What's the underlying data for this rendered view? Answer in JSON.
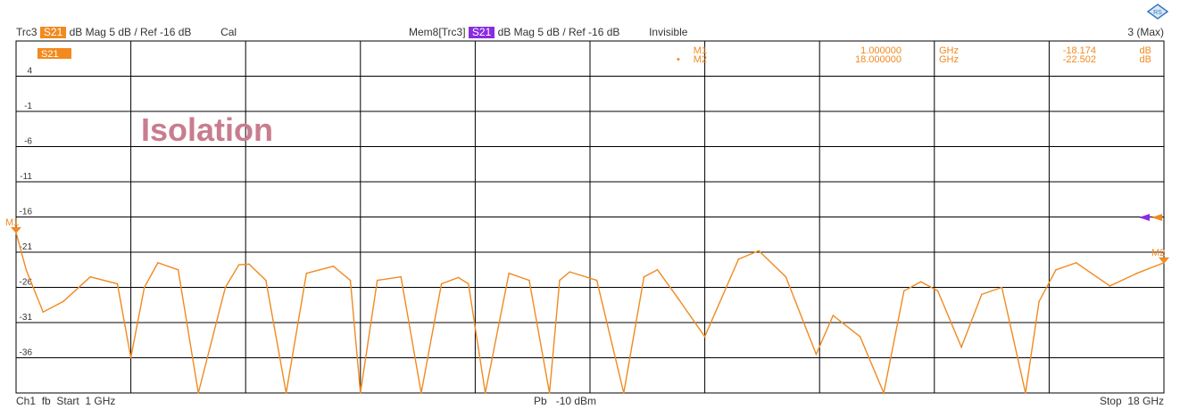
{
  "header": {
    "trace": "Trc3",
    "trace_param": "S21",
    "trace_format": "dB Mag",
    "trace_scale": "5 dB /",
    "trace_ref": "Ref -16 dB",
    "trace_cal": "Cal",
    "mem": "Mem8[Trc3]",
    "mem_param": "S21",
    "mem_format": "dB Mag",
    "mem_scale": "5 dB /",
    "mem_ref": "Ref -16 dB",
    "mem_state": "Invisible",
    "marker_count": "3 (Max)"
  },
  "footer": {
    "channel": "Ch1",
    "fb": "fb",
    "start_label": "Start",
    "start_value": "1 GHz",
    "power_label": "Pb",
    "power_value": "-10 dBm",
    "stop_label": "Stop",
    "stop_value": "18 GHz"
  },
  "plot": {
    "trace_tag": "S21",
    "annotation": "Isolation"
  },
  "markers": [
    {
      "name": "M1",
      "prefix": "",
      "freq": "1.000000",
      "unit": "GHz",
      "value": "-18.174",
      "value_unit": "dB"
    },
    {
      "name": "M2",
      "prefix": "•",
      "freq": "18.000000",
      "unit": "GHz",
      "value": "-22.502",
      "value_unit": "dB"
    }
  ],
  "colors": {
    "trace": "#f08a20",
    "memory": "#8a2be2",
    "annotation": "#c87d8e",
    "grid": "#000000"
  },
  "chart_data": {
    "type": "line",
    "title": "",
    "xlabel": "",
    "ylabel": "",
    "xlim": [
      1,
      18
    ],
    "ylim": [
      -41,
      9
    ],
    "x_unit": "GHz",
    "y_unit": "dB",
    "grid": true,
    "y_ticks": [
      4,
      -1,
      -6,
      -11,
      -16,
      -21,
      -26,
      -31,
      -36
    ],
    "reference_level": -16,
    "series": [
      {
        "name": "S21",
        "x": [
          1.0,
          1.15,
          1.4,
          1.7,
          2.1,
          2.5,
          2.7,
          2.9,
          3.1,
          3.4,
          3.7,
          4.1,
          4.3,
          4.45,
          4.7,
          5.0,
          5.3,
          5.7,
          5.95,
          6.1,
          6.35,
          6.7,
          7.0,
          7.3,
          7.55,
          7.7,
          7.95,
          8.3,
          8.6,
          8.9,
          9.05,
          9.2,
          9.6,
          10.0,
          10.3,
          10.5,
          10.8,
          11.2,
          11.7,
          12.0,
          12.4,
          12.85,
          13.1,
          13.5,
          13.85,
          14.15,
          14.4,
          14.65,
          15.0,
          15.3,
          15.6,
          15.95,
          16.15,
          16.4,
          16.7,
          17.2,
          17.6,
          18.0
        ],
        "y": [
          -18.2,
          -23.5,
          -29.5,
          -28.0,
          -24.5,
          -25.5,
          -36.0,
          -26.0,
          -22.5,
          -23.5,
          -41.0,
          -26.0,
          -22.8,
          -22.7,
          -25.0,
          -41.0,
          -24.0,
          -23.0,
          -25.0,
          -41.0,
          -25.0,
          -24.5,
          -41.0,
          -25.5,
          -24.6,
          -25.5,
          -41.0,
          -24.0,
          -25.0,
          -41.0,
          -25.0,
          -23.8,
          -25.0,
          -41.0,
          -24.5,
          -23.5,
          -27.5,
          -33.0,
          -22.0,
          -20.8,
          -24.5,
          -35.5,
          -30.0,
          -33.0,
          -41.0,
          -26.5,
          -25.2,
          -26.5,
          -34.5,
          -27.0,
          -26.0,
          -41.0,
          -28.0,
          -23.5,
          -22.5,
          -25.8,
          -24.0,
          -22.5
        ]
      }
    ]
  }
}
